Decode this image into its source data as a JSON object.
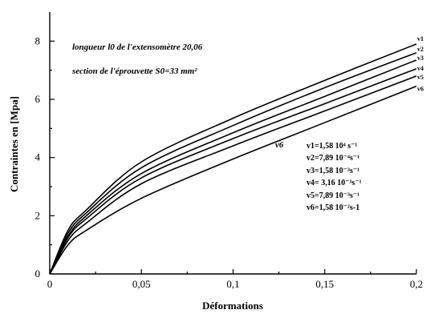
{
  "chart_data": {
    "type": "line",
    "xlabel": "Déformations",
    "ylabel": "Contraintes en [Mpa]",
    "xlim": [
      0,
      0.2
    ],
    "ylim": [
      0,
      9
    ],
    "x_ticks": [
      "0",
      "0,05",
      "0,1",
      "0,15",
      "0,2"
    ],
    "y_ticks": [
      "0",
      "2",
      "4",
      "6",
      "8"
    ],
    "grid": false,
    "annotations": [
      "longueur l0 de l'extensomètre 20,06",
      "section de l'éprouvette S0=33 mm²"
    ],
    "inline_label": "v6",
    "legend": [
      "v1=1,58  10⁴ s⁻¹",
      "v2=7,89  10⁻⁴s⁻¹",
      "v3=1,58  10⁻³s⁻¹",
      "v4= 3,16 10⁻³s⁻¹",
      "v5=7,89  10⁻³s⁻¹",
      "v6=1,58  10⁻²s-1"
    ],
    "end_labels": [
      "v1",
      "v2",
      "v3",
      "v4",
      "v5",
      "v6"
    ],
    "series": [
      {
        "name": "v1",
        "x": [
          0,
          0.01,
          0.02,
          0.05,
          0.1,
          0.15,
          0.2
        ],
        "y": [
          0,
          1.5,
          2.2,
          3.85,
          5.35,
          6.65,
          7.9
        ]
      },
      {
        "name": "v2",
        "x": [
          0,
          0.01,
          0.02,
          0.05,
          0.1,
          0.15,
          0.2
        ],
        "y": [
          0,
          1.4,
          2.1,
          3.65,
          5.1,
          6.4,
          7.6
        ]
      },
      {
        "name": "v3",
        "x": [
          0,
          0.01,
          0.02,
          0.05,
          0.1,
          0.15,
          0.2
        ],
        "y": [
          0,
          1.3,
          2.0,
          3.45,
          4.85,
          6.1,
          7.35
        ]
      },
      {
        "name": "v4",
        "x": [
          0,
          0.01,
          0.02,
          0.05,
          0.1,
          0.15,
          0.2
        ],
        "y": [
          0,
          1.25,
          1.9,
          3.3,
          4.65,
          5.85,
          7.05
        ]
      },
      {
        "name": "v5",
        "x": [
          0,
          0.01,
          0.02,
          0.05,
          0.1,
          0.15,
          0.2
        ],
        "y": [
          0,
          1.15,
          1.75,
          3.1,
          4.4,
          5.6,
          6.8
        ]
      },
      {
        "name": "v6",
        "x": [
          0,
          0.01,
          0.02,
          0.05,
          0.1,
          0.15,
          0.2
        ],
        "y": [
          0,
          1.0,
          1.5,
          2.6,
          3.95,
          5.2,
          6.45
        ]
      }
    ]
  }
}
